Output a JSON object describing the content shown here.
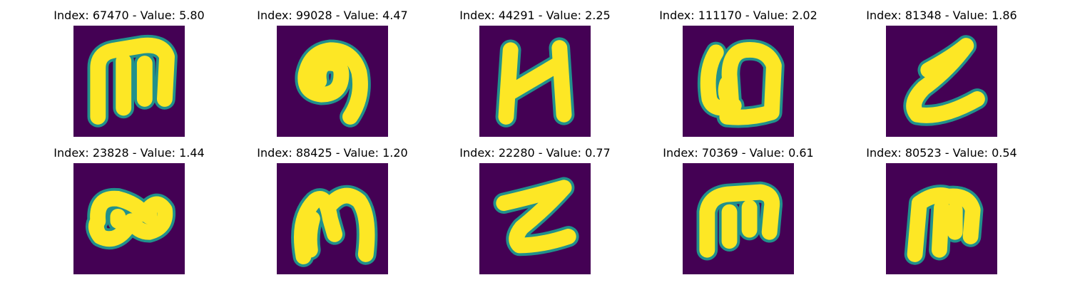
{
  "figure": {
    "background_color": "#440154",
    "stroke_color": "#fde725",
    "edge_color": "#21918c",
    "panels": [
      {
        "title": "Index: 67470 - Value: 5.80",
        "glyph": "m-blocky"
      },
      {
        "title": "Index: 99028 - Value: 4.47",
        "glyph": "loop-nine"
      },
      {
        "title": "Index: 44291 - Value: 2.25",
        "glyph": "n-bold"
      },
      {
        "title": "Index: 111170 - Value: 2.02",
        "glyph": "looped-box"
      },
      {
        "title": "Index: 81348 - Value: 1.86",
        "glyph": "z-cursive"
      },
      {
        "title": "Index: 23828 - Value: 1.44",
        "glyph": "double-loop"
      },
      {
        "title": "Index: 88425 - Value: 1.20",
        "glyph": "m-script"
      },
      {
        "title": "Index: 22280 - Value: 0.77",
        "glyph": "z-bold"
      },
      {
        "title": "Index: 70369 - Value: 0.61",
        "glyph": "m-low"
      },
      {
        "title": "Index: 80523 - Value: 0.54",
        "glyph": "m-thin"
      }
    ]
  }
}
